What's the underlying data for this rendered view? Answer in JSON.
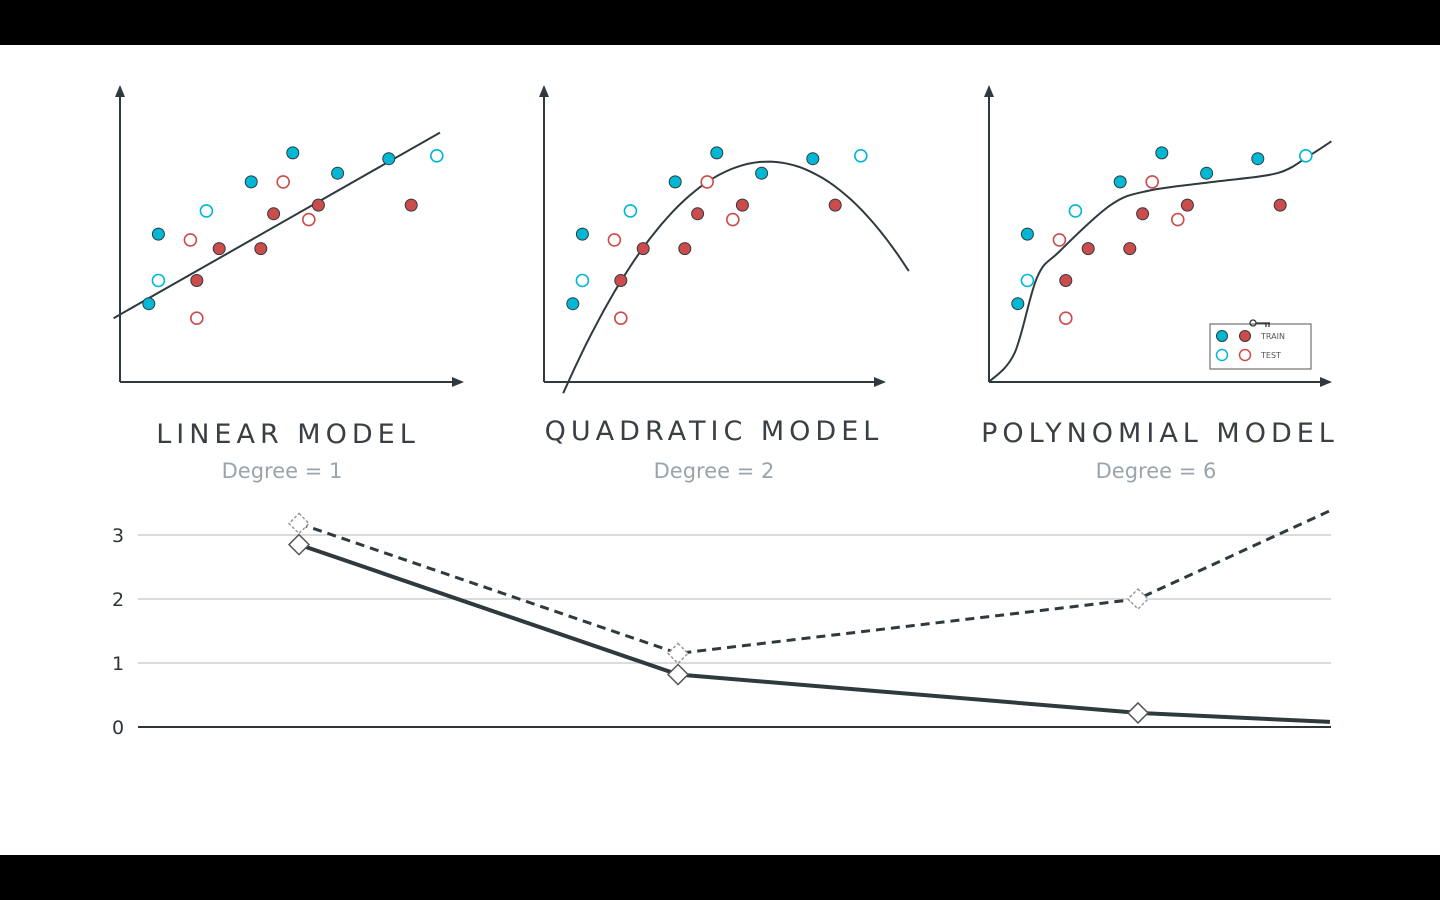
{
  "colors": {
    "train_blue": "#00b8d4",
    "test_red": "#cc4b4b",
    "axis": "#2f3a3f",
    "curve": "#2f3a3f",
    "grid": "#cfcfcf"
  },
  "chart_data": [
    {
      "type": "scatter",
      "title": "LINEAR MODEL",
      "subtitle": "Degree = 1",
      "fit": "linear",
      "train_blue_points": [
        [
          0.09,
          0.27
        ],
        [
          0.12,
          0.51
        ],
        [
          0.41,
          0.69
        ],
        [
          0.54,
          0.79
        ],
        [
          0.68,
          0.72
        ],
        [
          0.84,
          0.77
        ]
      ],
      "train_red_points": [
        [
          0.24,
          0.35
        ],
        [
          0.31,
          0.46
        ],
        [
          0.44,
          0.46
        ],
        [
          0.48,
          0.58
        ],
        [
          0.62,
          0.61
        ],
        [
          0.91,
          0.61
        ]
      ],
      "test_blue_points": [
        [
          0.12,
          0.35
        ],
        [
          0.27,
          0.59
        ],
        [
          0.99,
          0.78
        ]
      ],
      "test_red_points": [
        [
          0.24,
          0.22
        ],
        [
          0.22,
          0.49
        ],
        [
          0.51,
          0.69
        ],
        [
          0.59,
          0.56
        ]
      ]
    },
    {
      "type": "scatter",
      "title": "QUADRATIC MODEL",
      "subtitle": "Degree = 2",
      "fit": "quadratic",
      "train_blue_points": [
        [
          0.09,
          0.27
        ],
        [
          0.12,
          0.51
        ],
        [
          0.41,
          0.69
        ],
        [
          0.54,
          0.79
        ],
        [
          0.68,
          0.72
        ],
        [
          0.84,
          0.77
        ]
      ],
      "train_red_points": [
        [
          0.24,
          0.35
        ],
        [
          0.31,
          0.46
        ],
        [
          0.44,
          0.46
        ],
        [
          0.48,
          0.58
        ],
        [
          0.62,
          0.61
        ],
        [
          0.91,
          0.61
        ]
      ],
      "test_blue_points": [
        [
          0.12,
          0.35
        ],
        [
          0.27,
          0.59
        ],
        [
          0.99,
          0.78
        ]
      ],
      "test_red_points": [
        [
          0.24,
          0.22
        ],
        [
          0.22,
          0.49
        ],
        [
          0.51,
          0.69
        ],
        [
          0.59,
          0.56
        ]
      ]
    },
    {
      "type": "scatter",
      "title": "POLYNOMIAL MODEL",
      "subtitle": "Degree = 6",
      "fit": "polynomial",
      "train_blue_points": [
        [
          0.09,
          0.27
        ],
        [
          0.12,
          0.51
        ],
        [
          0.41,
          0.69
        ],
        [
          0.54,
          0.79
        ],
        [
          0.68,
          0.72
        ],
        [
          0.84,
          0.77
        ]
      ],
      "train_red_points": [
        [
          0.24,
          0.35
        ],
        [
          0.31,
          0.46
        ],
        [
          0.44,
          0.46
        ],
        [
          0.48,
          0.58
        ],
        [
          0.62,
          0.61
        ],
        [
          0.91,
          0.61
        ]
      ],
      "test_blue_points": [
        [
          0.12,
          0.35
        ],
        [
          0.27,
          0.59
        ],
        [
          0.99,
          0.78
        ]
      ],
      "test_red_points": [
        [
          0.24,
          0.22
        ],
        [
          0.22,
          0.49
        ],
        [
          0.51,
          0.69
        ],
        [
          0.59,
          0.56
        ]
      ],
      "legend": {
        "position": "bottom-right",
        "entries": [
          "TRAIN",
          "TEST"
        ]
      }
    },
    {
      "type": "line",
      "categories": [
        "Degree = 1",
        "Degree = 2",
        "Degree = 6"
      ],
      "x": [
        1,
        2,
        6
      ],
      "yticks": [
        0,
        1,
        2,
        3
      ],
      "ylim": [
        0,
        3.4
      ],
      "grid": true,
      "series": [
        {
          "style": "solid",
          "values": [
            2.85,
            0.82,
            0.22
          ],
          "end_value": 0.08
        },
        {
          "style": "dashed",
          "values": [
            3.18,
            1.15,
            2.0
          ],
          "end_value": 3.38
        }
      ]
    }
  ]
}
